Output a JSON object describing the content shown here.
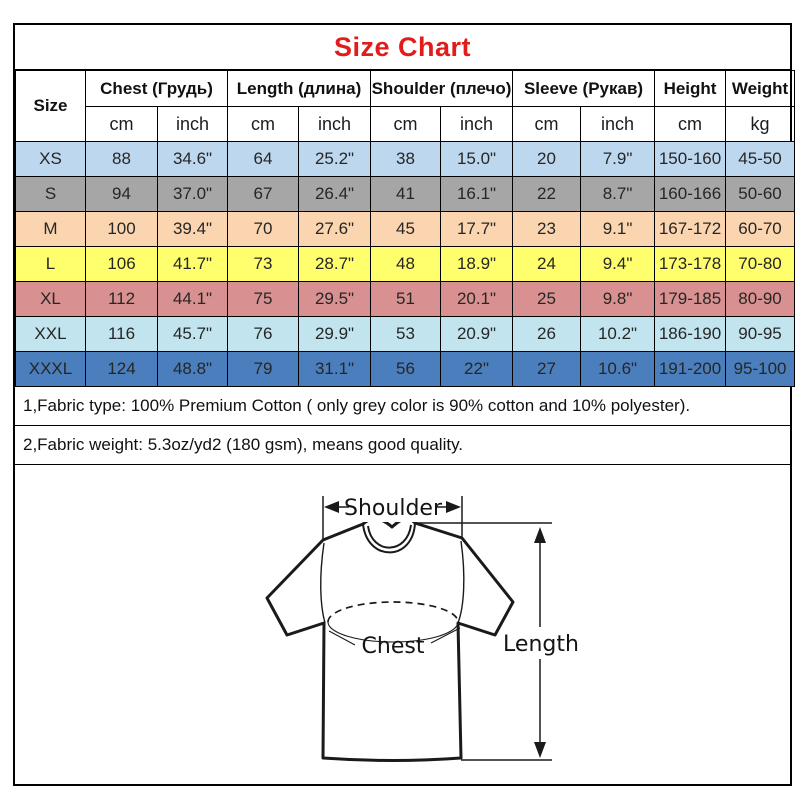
{
  "title": "Size Chart",
  "colors": {
    "title_red": "#E21B1B",
    "row_xs": "#BDD7EE",
    "row_s": "#A6A6A6",
    "row_m": "#FBD5B0",
    "row_l": "#FFFF6E",
    "row_xl": "#D99090",
    "row_xxl": "#C2E4EE",
    "row_xxxl": "#4A7EBC"
  },
  "chart_data": {
    "type": "table",
    "title": "Size Chart",
    "column_groups": [
      {
        "label": "Size"
      },
      {
        "label": "Chest (Грудь)"
      },
      {
        "label": "Length (длина)"
      },
      {
        "label": "Shoulder (плечо)"
      },
      {
        "label": "Sleeve (Рукав)"
      },
      {
        "label": "Height"
      },
      {
        "label": "Weight"
      }
    ],
    "units_row": [
      "cm",
      "inch",
      "cm",
      "inch",
      "cm",
      "inch",
      "cm",
      "inch",
      "cm",
      "kg"
    ],
    "rows": [
      {
        "size": "XS",
        "row_color": "#BDD7EE",
        "values": [
          "88",
          "34.6\"",
          "64",
          "25.2\"",
          "38",
          "15.0\"",
          "20",
          "7.9\"",
          "150-160",
          "45-50"
        ]
      },
      {
        "size": "S",
        "row_color": "#A6A6A6",
        "values": [
          "94",
          "37.0\"",
          "67",
          "26.4\"",
          "41",
          "16.1\"",
          "22",
          "8.7\"",
          "160-166",
          "50-60"
        ]
      },
      {
        "size": "M",
        "row_color": "#FBD5B0",
        "values": [
          "100",
          "39.4\"",
          "70",
          "27.6\"",
          "45",
          "17.7\"",
          "23",
          "9.1\"",
          "167-172",
          "60-70"
        ]
      },
      {
        "size": "L",
        "row_color": "#FFFF6E",
        "values": [
          "106",
          "41.7\"",
          "73",
          "28.7\"",
          "48",
          "18.9\"",
          "24",
          "9.4\"",
          "173-178",
          "70-80"
        ]
      },
      {
        "size": "XL",
        "row_color": "#D99090",
        "values": [
          "112",
          "44.1\"",
          "75",
          "29.5\"",
          "51",
          "20.1\"",
          "25",
          "9.8\"",
          "179-185",
          "80-90"
        ]
      },
      {
        "size": "XXL",
        "row_color": "#C2E4EE",
        "values": [
          "116",
          "45.7\"",
          "76",
          "29.9\"",
          "53",
          "20.9\"",
          "26",
          "10.2\"",
          "186-190",
          "90-95"
        ]
      },
      {
        "size": "XXXL",
        "row_color": "#4A7EBC",
        "values": [
          "124",
          "48.8\"",
          "79",
          "31.1\"",
          "56",
          "22\"",
          "27",
          "10.6\"",
          "191-200",
          "95-100"
        ]
      }
    ]
  },
  "notes": [
    "1,Fabric type: 100% Premium Cotton ( only grey color is 90% cotton and 10% polyester).",
    "2,Fabric weight: 5.3oz/yd2 (180 gsm), means good quality."
  ],
  "diagram": {
    "shoulder_label": "Shoulder",
    "chest_label": "Chest",
    "length_label": "Length"
  }
}
